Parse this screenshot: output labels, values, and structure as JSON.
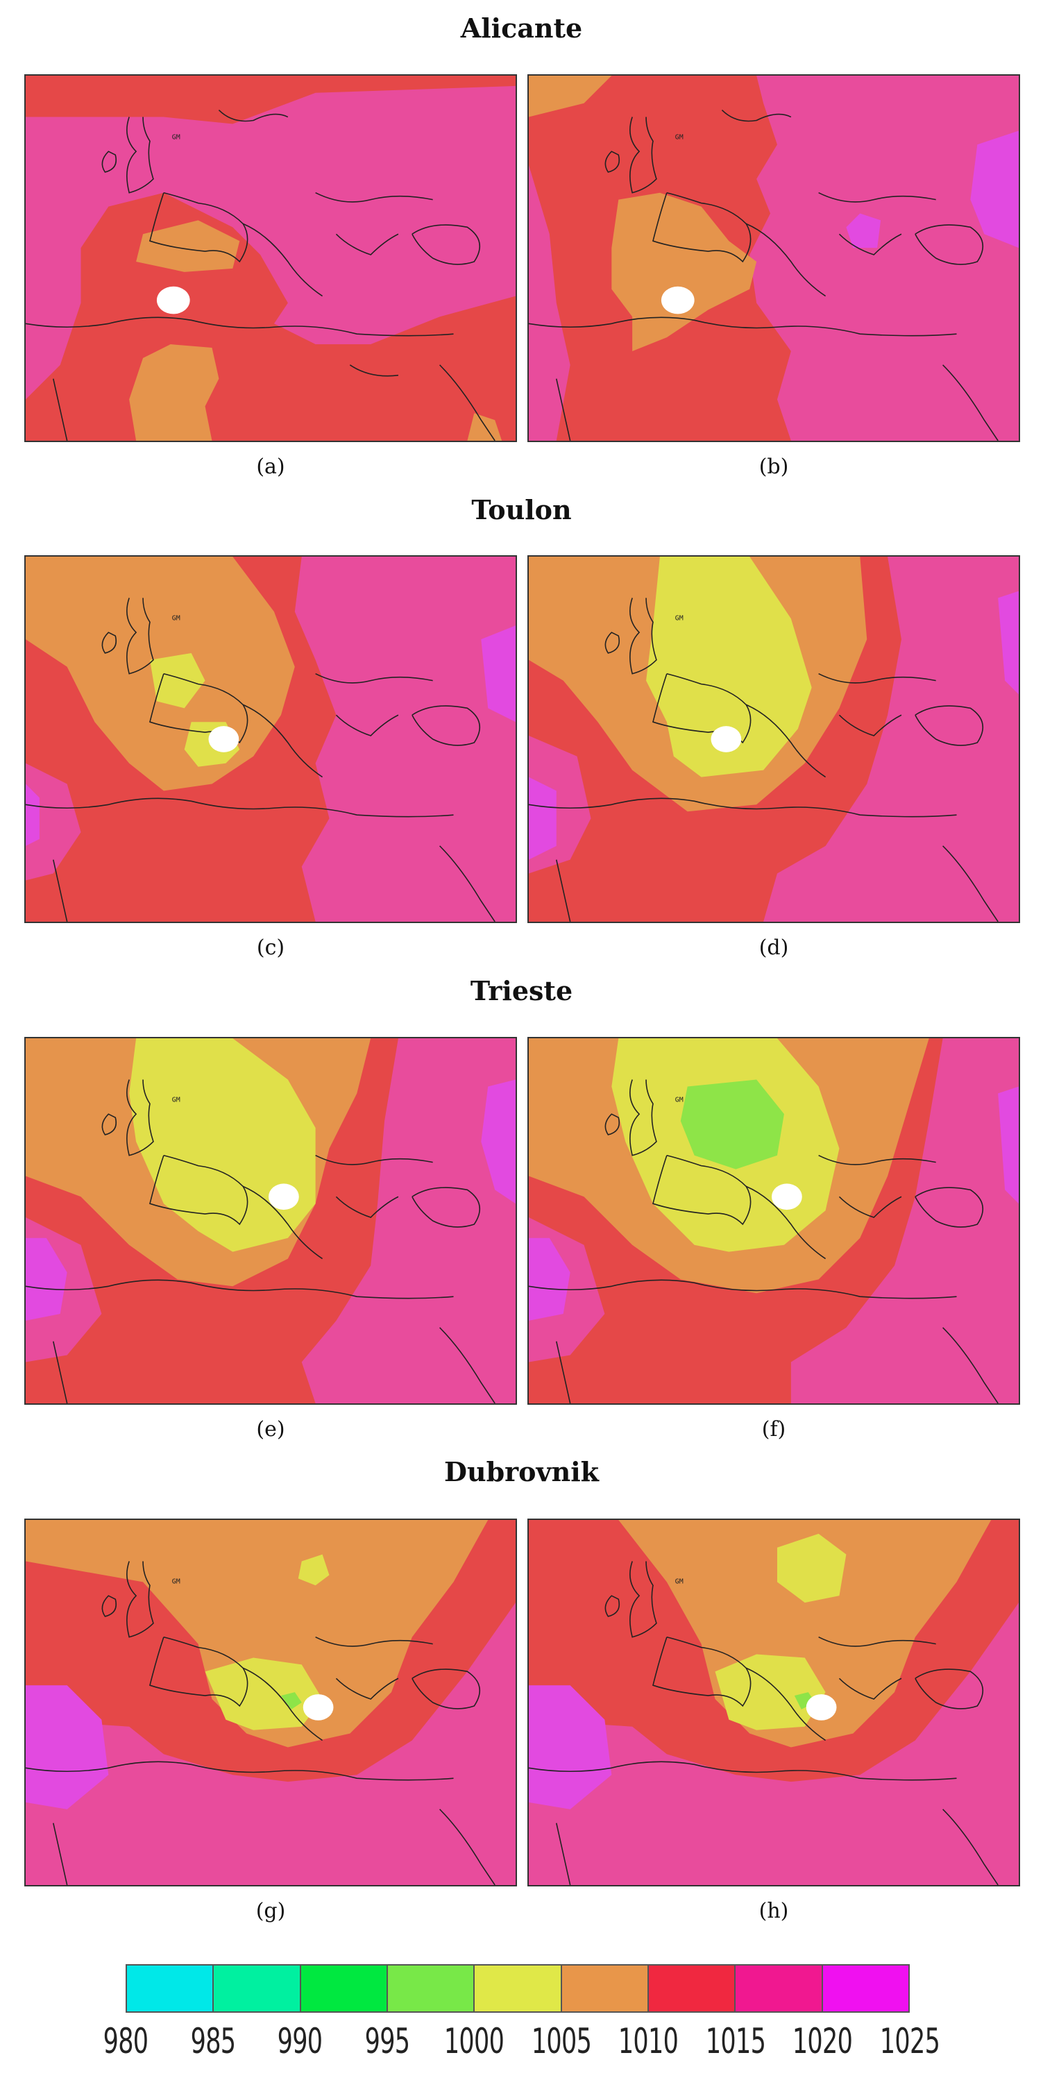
{
  "sections": [
    {
      "title": "Alicante",
      "panels": [
        {
          "label": "(a)"
        },
        {
          "label": "(b)"
        }
      ]
    },
    {
      "title": "Toulon",
      "panels": [
        {
          "label": "(c)"
        },
        {
          "label": "(d)"
        }
      ]
    },
    {
      "title": "Trieste",
      "panels": [
        {
          "label": "(e)"
        },
        {
          "label": "(f)"
        }
      ]
    },
    {
      "title": "Dubrovnik",
      "panels": [
        {
          "label": "(g)"
        },
        {
          "label": "(h)"
        }
      ]
    }
  ],
  "map_marker": "GM",
  "legend": {
    "ticks": [
      "980",
      "985",
      "990",
      "995",
      "1000",
      "1005",
      "1010",
      "1015",
      "1020",
      "1025"
    ],
    "colors": [
      "#00e8e8",
      "#00f0a0",
      "#00e840",
      "#78e848",
      "#e0e848",
      "#e8964a",
      "#f02840",
      "#f01890",
      "#f010f0"
    ]
  },
  "colors": {
    "band_1000": "#e0e04a",
    "band_1005": "#e5944c",
    "band_1010": "#e54848",
    "band_1015": "#e24a9c",
    "band_1020": "#e24ae0",
    "band_995": "#8ee448",
    "marker": "#ffffff"
  }
}
